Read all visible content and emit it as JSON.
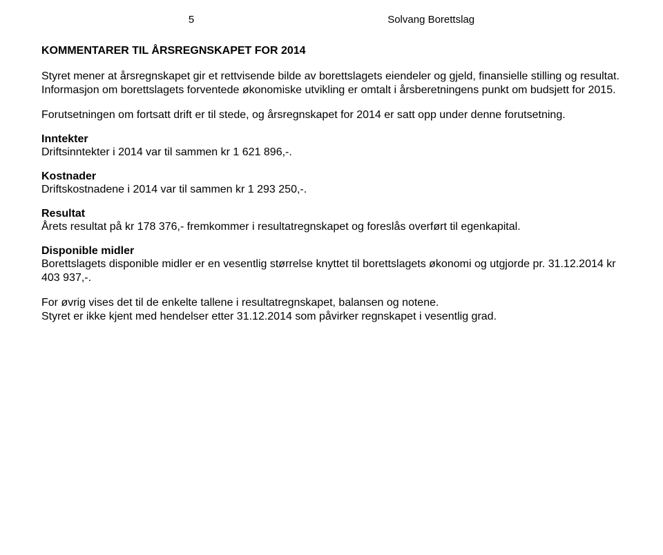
{
  "header": {
    "page_number": "5",
    "company": "Solvang Borettslag"
  },
  "title": "KOMMENTARER TIL ÅRSREGNSKAPET FOR 2014",
  "paragraphs": {
    "intro": "Styret mener at årsregnskapet gir et rettvisende bilde av borettslagets eiendeler og gjeld, finansielle stilling og resultat. Informasjon om borettslagets forventede økonomiske utvikling er omtalt i årsberetningens punkt om budsjett for 2015.",
    "forutsetning": "Forutsetningen om fortsatt drift er til stede, og årsregnskapet for 2014 er satt opp under denne forutsetning."
  },
  "sections": {
    "inntekter": {
      "heading": "Inntekter",
      "body": "Driftsinntekter i 2014 var til sammen kr 1 621 896,-."
    },
    "kostnader": {
      "heading": "Kostnader",
      "body": "Driftskostnadene i 2014 var til sammen kr 1 293 250,-."
    },
    "resultat": {
      "heading": "Resultat",
      "body": "Årets resultat på kr 178 376,- fremkommer i resultatregnskapet og foreslås overført til egenkapital."
    },
    "disponible": {
      "heading": "Disponible midler",
      "body": "Borettslagets disponible midler er en vesentlig størrelse knyttet til borettslagets økonomi og utgjorde pr. 31.12.2014 kr 403 937,-."
    }
  },
  "closing": {
    "p1": "For øvrig vises det til de enkelte tallene i resultatregnskapet, balansen og notene.",
    "p2": "Styret er ikke kjent med hendelser etter 31.12.2014 som påvirker regnskapet i vesentlig grad."
  }
}
